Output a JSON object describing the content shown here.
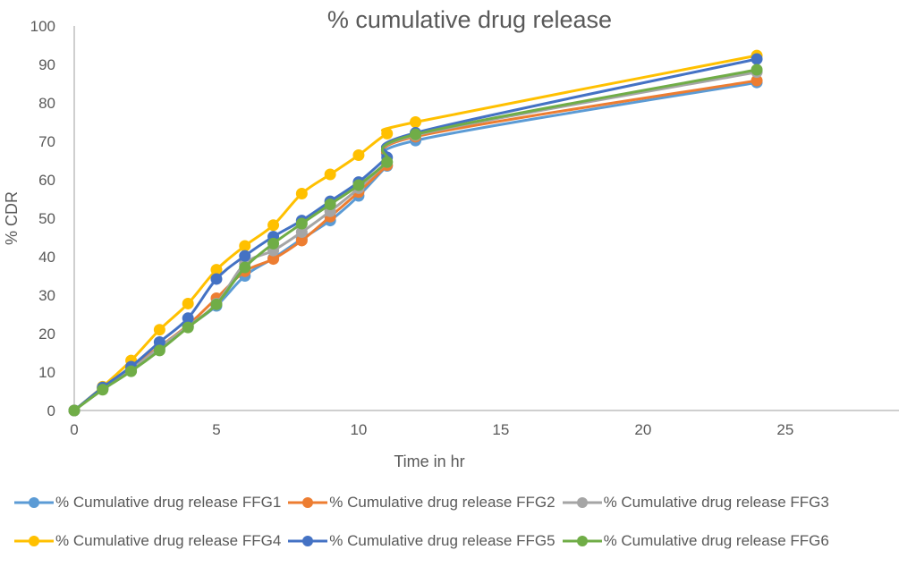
{
  "chart_data": {
    "type": "line",
    "title": "% cumulative drug release",
    "xlabel": "Time in hr",
    "ylabel": "% CDR",
    "xlim": [
      0,
      29
    ],
    "ylim": [
      0,
      100
    ],
    "xticks": [
      0,
      5,
      10,
      15,
      20,
      25
    ],
    "yticks": [
      0,
      10,
      20,
      30,
      40,
      50,
      60,
      70,
      80,
      90,
      100
    ],
    "grid": false,
    "legend_position": "bottom",
    "x": [
      0,
      1,
      2,
      3,
      4,
      5,
      6,
      7,
      8,
      9,
      10,
      11,
      12,
      24
    ],
    "series": [
      {
        "name": "% Cumulative drug release FFG1",
        "color": "#5B9BD5",
        "values": [
          0,
          5.8,
          10.8,
          16.2,
          21.8,
          27.2,
          35.0,
          39.6,
          44.6,
          49.4,
          55.8,
          63.6,
          70.2,
          85.3
        ]
      },
      {
        "name": "% Cumulative drug release FFG2",
        "color": "#ED7D31",
        "values": [
          0,
          5.9,
          11.2,
          16.6,
          22.2,
          29.2,
          36.2,
          39.4,
          44.2,
          50.4,
          56.8,
          63.8,
          71.2,
          85.8
        ]
      },
      {
        "name": "% Cumulative drug release FFG3",
        "color": "#A5A5A5",
        "values": [
          0,
          5.6,
          10.6,
          16.4,
          21.9,
          27.8,
          38.2,
          41.6,
          46.4,
          51.8,
          57.8,
          64.6,
          71.6,
          88.0
        ]
      },
      {
        "name": "% Cumulative drug release FFG4",
        "color": "#FFC000",
        "values": [
          0,
          6.2,
          13.0,
          21.0,
          27.8,
          36.6,
          42.8,
          48.2,
          56.4,
          61.4,
          66.4,
          72.0,
          75.0,
          92.3
        ]
      },
      {
        "name": "% Cumulative drug release FFG5",
        "color": "#4472C4",
        "values": [
          0,
          6.0,
          11.4,
          17.8,
          24.0,
          34.2,
          40.2,
          45.2,
          49.4,
          54.4,
          59.4,
          65.8,
          72.2,
          91.4
        ]
      },
      {
        "name": "% Cumulative drug release FFG6",
        "color": "#70AD47",
        "values": [
          0,
          5.4,
          10.2,
          15.6,
          21.6,
          27.6,
          37.2,
          43.4,
          48.6,
          53.6,
          58.6,
          64.6,
          71.8,
          88.6
        ]
      }
    ]
  }
}
